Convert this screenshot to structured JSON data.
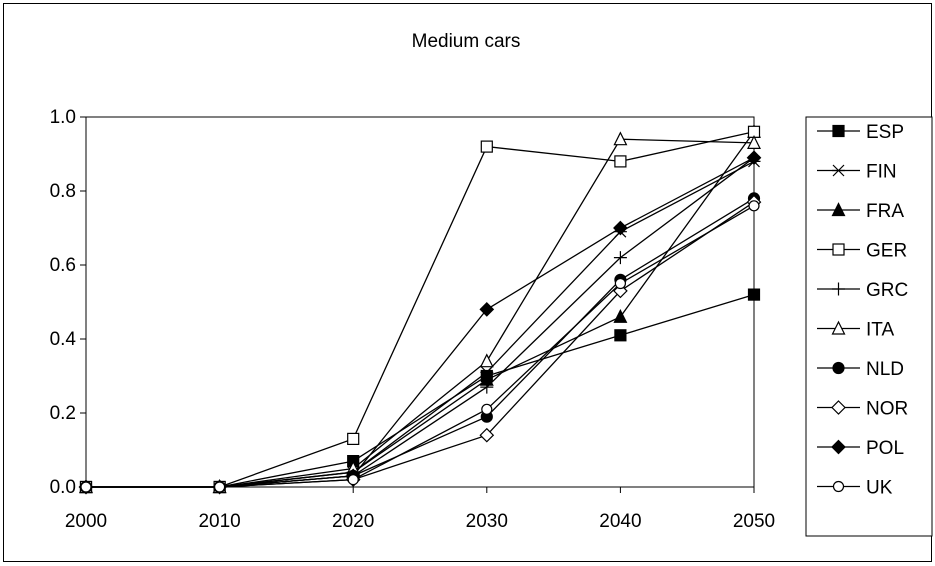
{
  "chart_data": {
    "type": "line",
    "title": "Medium cars",
    "xlabel": "",
    "ylabel": "",
    "x": [
      2000,
      2010,
      2020,
      2030,
      2040,
      2050
    ],
    "x_tick_labels": [
      "2000",
      "2010",
      "2020",
      "2030",
      "2040",
      "2050"
    ],
    "ylim": [
      0,
      1
    ],
    "y_tick_labels": [
      "0.0",
      "0.2",
      "0.4",
      "0.6",
      "0.8",
      "1.0"
    ],
    "y_ticks": [
      0,
      0.2,
      0.4,
      0.6,
      0.8,
      1.0
    ],
    "grid": false,
    "legend_position": "right",
    "series": [
      {
        "name": "ESP",
        "marker": "square-filled",
        "values": [
          0,
          0,
          0.07,
          0.3,
          0.41,
          0.52
        ]
      },
      {
        "name": "FIN",
        "marker": "asterisk",
        "values": [
          0,
          0,
          0.04,
          0.31,
          0.69,
          0.88
        ]
      },
      {
        "name": "FRA",
        "marker": "triangle-filled",
        "values": [
          0,
          0,
          0.04,
          0.29,
          0.46,
          0.96
        ]
      },
      {
        "name": "GER",
        "marker": "square-open",
        "values": [
          0,
          0,
          0.13,
          0.92,
          0.88,
          0.96
        ]
      },
      {
        "name": "GRC",
        "marker": "plus",
        "values": [
          0,
          0,
          0.03,
          0.27,
          0.62,
          0.89
        ]
      },
      {
        "name": "ITA",
        "marker": "triangle-open",
        "values": [
          0,
          0,
          0.05,
          0.34,
          0.94,
          0.93
        ]
      },
      {
        "name": "NLD",
        "marker": "circle-filled",
        "values": [
          0,
          0,
          0.03,
          0.19,
          0.56,
          0.78
        ]
      },
      {
        "name": "NOR",
        "marker": "diamond-open",
        "values": [
          0,
          0,
          0.02,
          0.14,
          0.53,
          0.77
        ]
      },
      {
        "name": "POL",
        "marker": "diamond-filled",
        "values": [
          0,
          0,
          0.03,
          0.48,
          0.7,
          0.89
        ]
      },
      {
        "name": "UK",
        "marker": "circle-open",
        "values": [
          0,
          0,
          0.02,
          0.21,
          0.55,
          0.76
        ]
      }
    ]
  }
}
